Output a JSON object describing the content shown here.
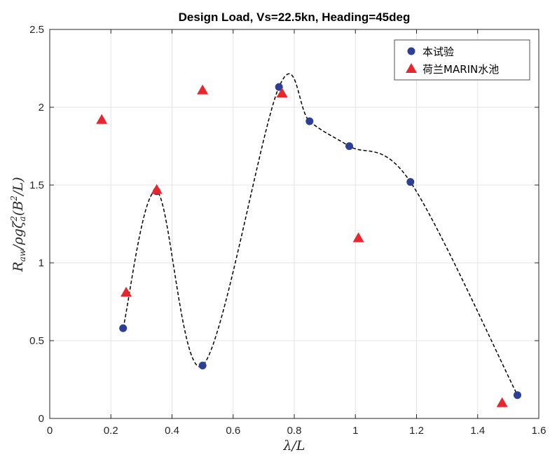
{
  "chart_data": {
    "type": "scatter",
    "title": "Design Load, Vs=22.5kn, Heading=45deg",
    "xlabel": "λ/L",
    "ylabel_parts": [
      "R",
      "aw",
      "/ρgζ",
      "a",
      "2",
      "(B",
      "2",
      "/L)"
    ],
    "xlim": [
      0,
      1.6
    ],
    "ylim": [
      0,
      2.5
    ],
    "x_ticks": [
      0,
      0.2,
      0.4,
      0.6,
      0.8,
      1,
      1.2,
      1.4,
      1.6
    ],
    "x_tick_labels": [
      "0",
      "0.2",
      "0.4",
      "0.6",
      "0.8",
      "1",
      "1.2",
      "1.4",
      "1.6"
    ],
    "y_ticks": [
      0,
      0.5,
      1,
      1.5,
      2,
      2.5
    ],
    "y_tick_labels": [
      "0",
      "0.5",
      "1",
      "1.5",
      "2",
      "2.5"
    ],
    "grid": true,
    "legend_position": "top-right",
    "series": [
      {
        "name": "本试验",
        "marker": "circle",
        "color": "#2b3f97",
        "x": [
          0.24,
          0.35,
          0.5,
          0.75,
          0.85,
          0.98,
          1.18,
          1.53
        ],
        "y": [
          0.58,
          1.46,
          0.34,
          2.13,
          1.91,
          1.75,
          1.52,
          0.15
        ]
      },
      {
        "name": "荷兰MARIN水池",
        "marker": "triangle",
        "color": "#e8262b",
        "x": [
          0.17,
          0.25,
          0.35,
          0.5,
          0.76,
          1.01,
          1.48
        ],
        "y": [
          1.92,
          0.81,
          1.47,
          2.11,
          2.09,
          1.16,
          0.1
        ]
      }
    ],
    "fit_curve": {
      "style": "dashed",
      "color": "#000000",
      "x": [
        0.24,
        0.35,
        0.5,
        0.75,
        0.85,
        0.98,
        1.18,
        1.53
      ],
      "y": [
        0.58,
        1.46,
        0.34,
        2.13,
        1.91,
        1.75,
        1.52,
        0.15
      ]
    }
  }
}
